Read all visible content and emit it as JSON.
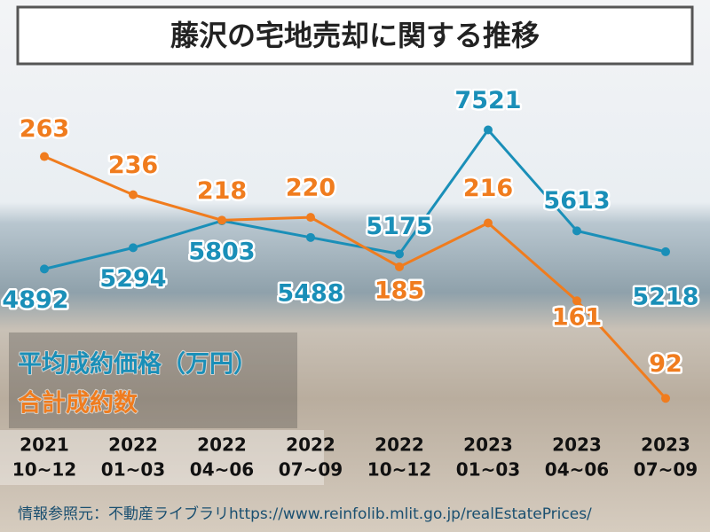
{
  "chart_data": {
    "type": "line",
    "title": "藤沢の宅地売却に関する推移",
    "categories": [
      [
        "2021",
        "10~12"
      ],
      [
        "2022",
        "01~03"
      ],
      [
        "2022",
        "04~06"
      ],
      [
        "2022",
        "07~09"
      ],
      [
        "2022",
        "10~12"
      ],
      [
        "2023",
        "01~03"
      ],
      [
        "2023",
        "04~06"
      ],
      [
        "2023",
        "07~09"
      ]
    ],
    "series": [
      {
        "name": "平均成約価格（万円）",
        "color": "#1a8fb8",
        "values": [
          4892,
          5294,
          5803,
          5488,
          5175,
          7521,
          5613,
          5218
        ]
      },
      {
        "name": "合計成約数",
        "color": "#f07c1e",
        "axis": "y2",
        "values": [
          263,
          236,
          218,
          220,
          185,
          216,
          161,
          92
        ]
      }
    ],
    "ylim": [
      2100,
      8300
    ],
    "y2lim": [
      79,
      311
    ],
    "source": "情報参照元：不動産ライブラリhttps://www.reinfolib.mlit.go.jp/realEstatePrices/"
  }
}
